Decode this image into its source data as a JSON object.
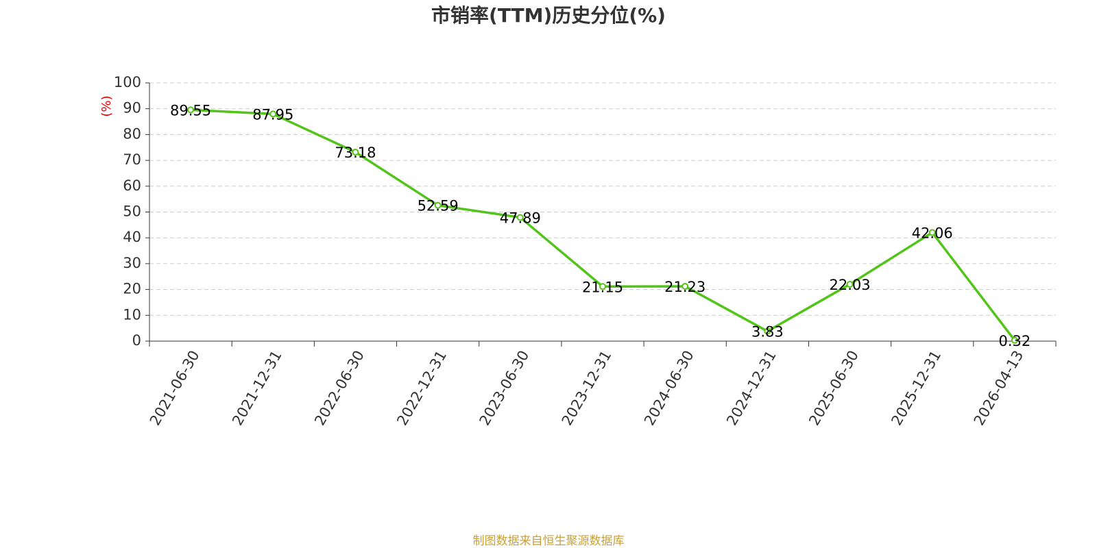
{
  "chart_data": {
    "type": "line",
    "title": "市销率(TTM)历史分位(%)",
    "y_label": "(%)",
    "source": "制图数据来自恒生聚源数据库",
    "categories": [
      "2021-06-30",
      "2021-12-31",
      "2022-06-30",
      "2022-12-31",
      "2023-06-30",
      "2023-12-31",
      "2024-06-30",
      "2024-12-31",
      "2025-06-30",
      "2025-12-31",
      "2026-04-13"
    ],
    "values": [
      89.55,
      87.95,
      73.18,
      52.59,
      47.89,
      21.15,
      21.23,
      3.83,
      22.03,
      42.06,
      0.32
    ],
    "color": "#52c41a",
    "ylim": [
      0,
      100
    ],
    "yticks": [
      0,
      10,
      20,
      30,
      40,
      50,
      60,
      70,
      80,
      90,
      100
    ],
    "grid": true
  }
}
